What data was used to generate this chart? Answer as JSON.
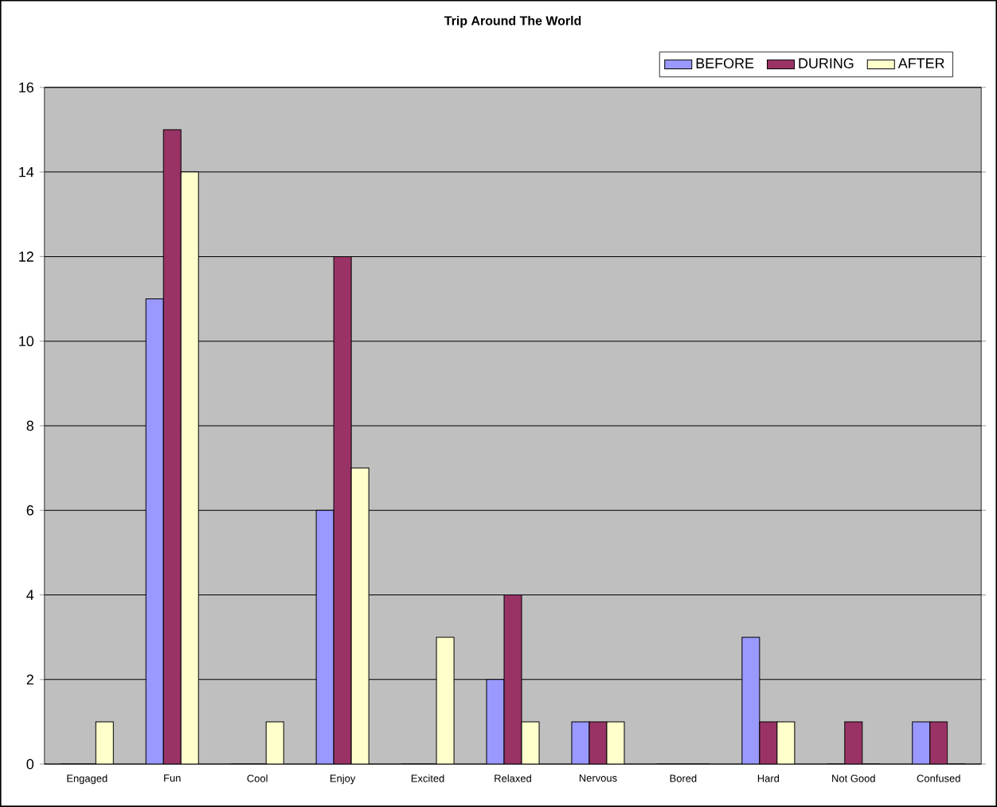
{
  "chart_data": {
    "type": "bar",
    "title": "Trip Around The World",
    "categories": [
      "Engaged",
      "Fun",
      "Cool",
      "Enjoy",
      "Excited",
      "Relaxed",
      "Nervous",
      "Bored",
      "Hard",
      "Not Good",
      "Confused"
    ],
    "series": [
      {
        "name": "BEFORE",
        "color": "#9999ff",
        "values": [
          0,
          11,
          0,
          6,
          0,
          2,
          1,
          0,
          3,
          0,
          1
        ]
      },
      {
        "name": "DURING",
        "color": "#993366",
        "values": [
          0,
          15,
          0,
          12,
          0,
          4,
          1,
          0,
          1,
          1,
          1
        ]
      },
      {
        "name": "AFTER",
        "color": "#ffffcc",
        "values": [
          1,
          14,
          1,
          7,
          3,
          1,
          1,
          0,
          1,
          0,
          0
        ]
      }
    ],
    "ylim": [
      0,
      16
    ],
    "yticks": [
      0,
      2,
      4,
      6,
      8,
      10,
      12,
      14,
      16
    ],
    "grid": "y",
    "legend": "top right"
  }
}
